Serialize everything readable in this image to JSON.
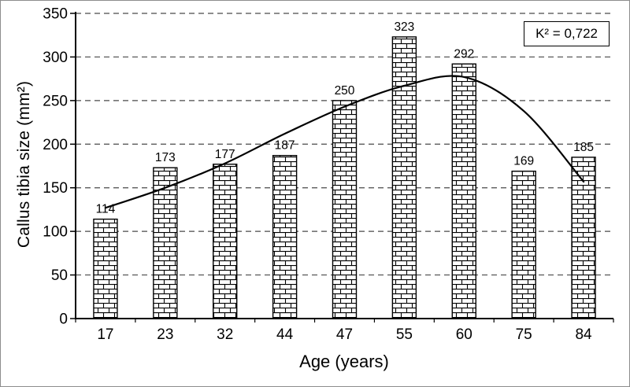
{
  "chart_data": {
    "type": "bar",
    "title": "",
    "categories": [
      "17",
      "23",
      "32",
      "44",
      "47",
      "55",
      "60",
      "75",
      "84"
    ],
    "values": [
      114,
      173,
      177,
      187,
      250,
      323,
      292,
      169,
      185
    ],
    "value_labels": [
      "114",
      "173",
      "177",
      "187",
      "250",
      "323",
      "292",
      "169",
      "185"
    ],
    "xlabel": "Age (years)",
    "ylabel": "Callus tibia size (mm²)",
    "ylim": [
      0,
      350
    ],
    "yticks": [
      0,
      50,
      100,
      150,
      200,
      250,
      300,
      350
    ],
    "ytick_labels": [
      "0",
      "50",
      "100",
      "150",
      "200",
      "250",
      "300",
      "350"
    ],
    "grid": "dashed-horizontal",
    "legend": "none",
    "bar_fill": "brick-pattern-white-black",
    "annotation": "K² = 0,722",
    "trendline": {
      "type": "polynomial",
      "color": "#000000",
      "points": [
        [
          0,
          127
        ],
        [
          1,
          150
        ],
        [
          2,
          178
        ],
        [
          3,
          212
        ],
        [
          4,
          243
        ],
        [
          5,
          267
        ],
        [
          6,
          277
        ],
        [
          7,
          238
        ],
        [
          8,
          157
        ]
      ]
    }
  },
  "colors": {
    "axis": "#000000",
    "grid": "#4a4a4a",
    "text": "#000000",
    "bar_stroke": "#000000",
    "bar_bg": "#ffffff",
    "frame_border": "#8d8d8d"
  }
}
